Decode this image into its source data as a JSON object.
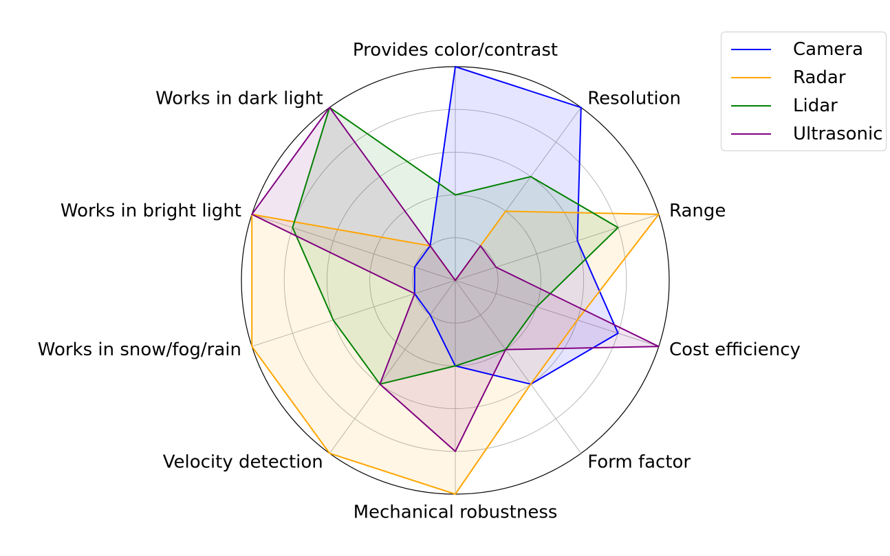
{
  "chart_data": {
    "type": "radar",
    "title": "",
    "axes": [
      "Provides color/contrast",
      "Resolution",
      "Range",
      "Cost efficiency",
      "Form factor",
      "Mechanical robustness",
      "Velocity detection",
      "Works in snow/fog/rain",
      "Works in bright light",
      "Works in dark light"
    ],
    "rlim": [
      0,
      5
    ],
    "grid": true,
    "gridlines": [
      1,
      2,
      3,
      4,
      5
    ],
    "legend_position": "top-right",
    "series": [
      {
        "name": "Camera",
        "color": "#0000ff",
        "values": [
          5,
          5,
          3,
          4,
          3,
          2,
          1,
          1,
          1,
          1
        ]
      },
      {
        "name": "Radar",
        "color": "#ffa500",
        "values": [
          0,
          2,
          5,
          3,
          3,
          5,
          5,
          5,
          5,
          1
        ]
      },
      {
        "name": "Lidar",
        "color": "#008000",
        "values": [
          2,
          3,
          4,
          2,
          2,
          2,
          3,
          3,
          4,
          5
        ]
      },
      {
        "name": "Ultrasonic",
        "color": "#800080",
        "values": [
          0,
          1,
          1,
          5,
          2,
          4,
          3,
          1,
          5,
          5
        ]
      }
    ]
  }
}
